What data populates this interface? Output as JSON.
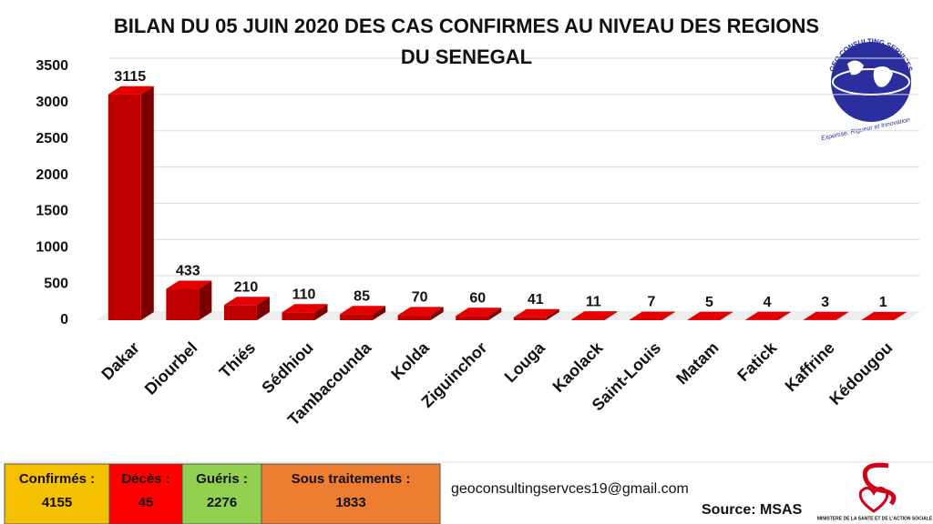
{
  "chart_data": {
    "type": "bar",
    "title": "BILAN DU 05 JUIN 2020 DES CAS CONFIRMES AU NIVEAU DES REGIONS  DU SENEGAL",
    "categories": [
      "Dakar",
      "Diourbel",
      "Thiés",
      "Sédhiou",
      "Tambacounda",
      "Kolda",
      "Ziguinchor",
      "Louga",
      "Kaolack",
      "Saint-Louis",
      "Matam",
      "Fatick",
      "Kaffrine",
      "Kédougou"
    ],
    "values": [
      3115,
      433,
      210,
      110,
      85,
      70,
      60,
      41,
      11,
      7,
      5,
      4,
      3,
      1
    ],
    "color": "#c00000",
    "ylim": [
      0,
      3500
    ],
    "yticks": [
      0,
      500,
      1000,
      1500,
      2000,
      2500,
      3000,
      3500
    ],
    "grid": true
  },
  "summary": [
    {
      "label": "Confirmés :",
      "value": 4155,
      "color": "#f5c000"
    },
    {
      "label": "Décès :",
      "value": 45,
      "color": "#ff0000"
    },
    {
      "label": "Guéris :",
      "value": 2276,
      "color": "#92d050"
    },
    {
      "label": "Sous traitements :",
      "value": 1833,
      "color": "#ed7d31"
    }
  ],
  "contact": {
    "email": "geoconsultingservces19@gmail.com",
    "source": "Source:  MSAS"
  },
  "logos": {
    "geo_name": "GEO CONSULTING SERVICES",
    "geo_tagline": "Expertise, Rigueur et Innovation",
    "ministry": "MINISTERE DE LA SANTE ET DE L'ACTION SOCIALE"
  }
}
